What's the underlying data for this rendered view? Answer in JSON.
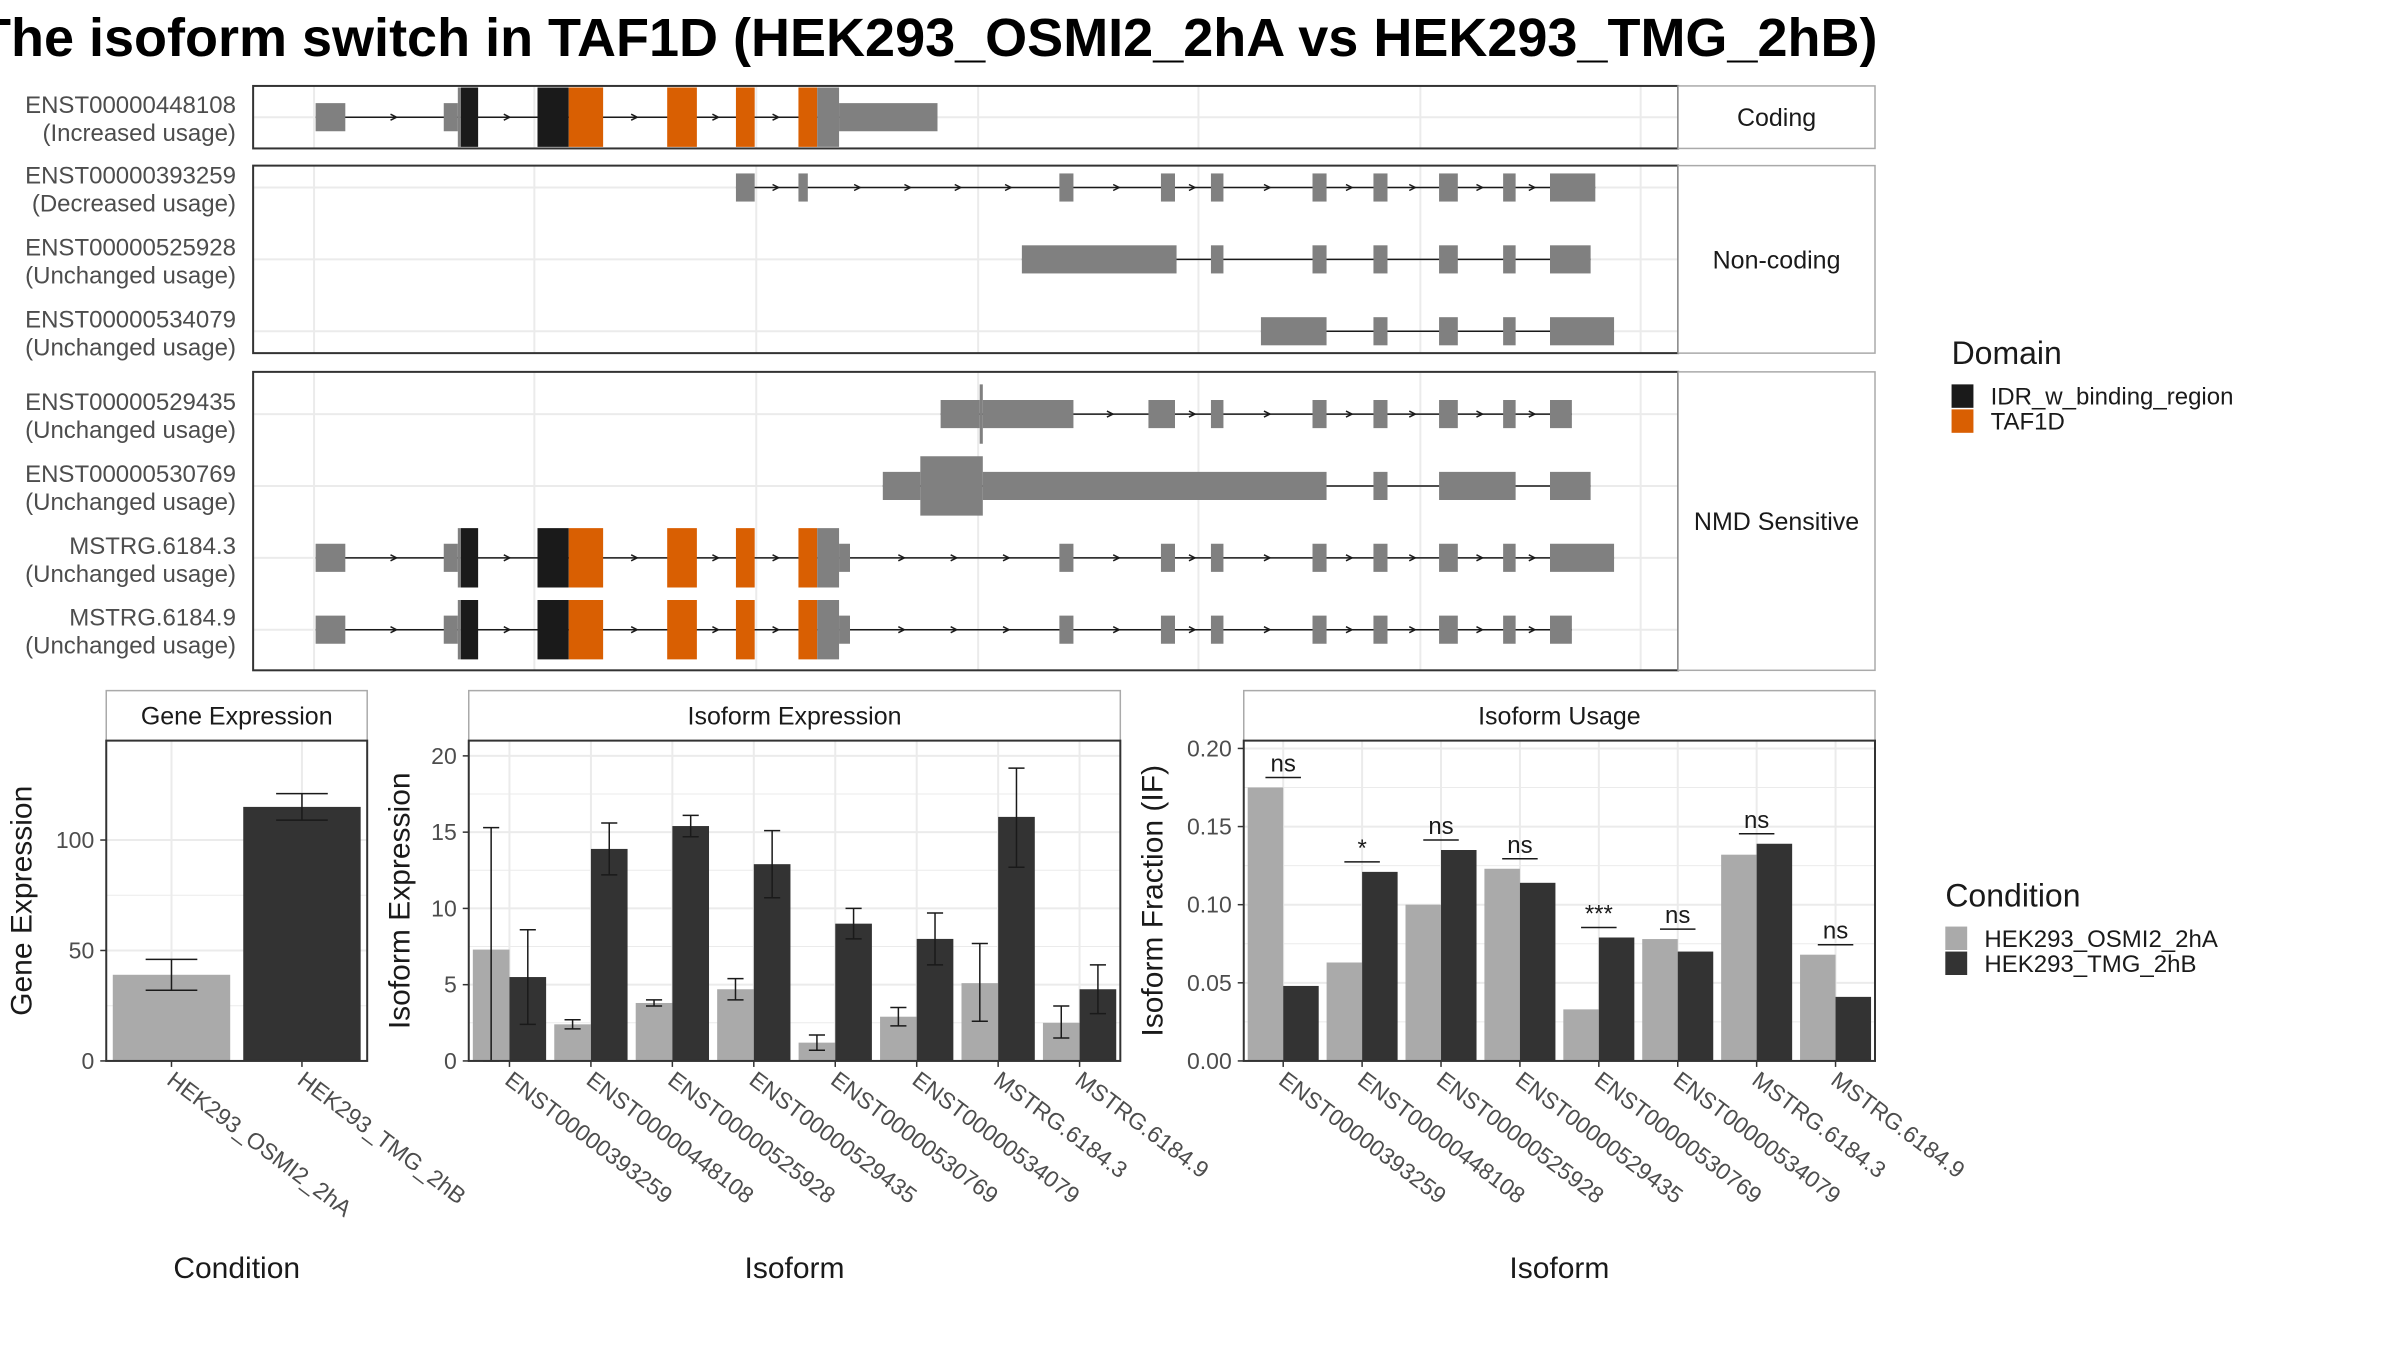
{
  "title": "The isoform switch in TAF1D (HEK293_OSMI2_2hA vs HEK293_TMG_2hB)",
  "colors": {
    "utr": "#808080",
    "IDR_w_binding_region": "#1a1a1a",
    "TAF1D": "#d95f02",
    "cond1": "#aaaaaa",
    "cond2": "#333333",
    "panel_border": "#333333",
    "strip_border": "#aaaaaa",
    "grid": "#ebebeb"
  },
  "structure": {
    "groups": [
      {
        "label": "Coding",
        "tracks": [
          {
            "id": "ENST00000448108",
            "usage": "(Increased usage)",
            "arrows": true,
            "exons": [
              {
                "s": 202,
                "e": 221,
                "t": "utr"
              },
              {
                "s": 284,
                "e": 293,
                "t": "utr"
              },
              {
                "s": 293,
                "e": 295,
                "t": "cds"
              },
              {
                "s": 295,
                "e": 306,
                "t": "IDR_w_binding_region"
              },
              {
                "s": 344,
                "e": 364,
                "t": "IDR_w_binding_region"
              },
              {
                "s": 364,
                "e": 386,
                "t": "TAF1D"
              },
              {
                "s": 427,
                "e": 446,
                "t": "TAF1D"
              },
              {
                "s": 471,
                "e": 483,
                "t": "TAF1D"
              },
              {
                "s": 511,
                "e": 523,
                "t": "TAF1D"
              },
              {
                "s": 523,
                "e": 537,
                "t": "cds"
              },
              {
                "s": 537,
                "e": 600,
                "t": "utr"
              }
            ]
          }
        ]
      },
      {
        "label": "Non-coding",
        "tracks": [
          {
            "id": "ENST00000393259",
            "usage": "(Decreased usage)",
            "arrows": true,
            "exons": [
              {
                "s": 471,
                "e": 483,
                "t": "utr"
              },
              {
                "s": 511,
                "e": 517,
                "t": "utr"
              },
              {
                "s": 678,
                "e": 687,
                "t": "utr"
              },
              {
                "s": 743,
                "e": 752,
                "t": "utr"
              },
              {
                "s": 775,
                "e": 783,
                "t": "utr"
              },
              {
                "s": 840,
                "e": 849,
                "t": "utr"
              },
              {
                "s": 879,
                "e": 888,
                "t": "utr"
              },
              {
                "s": 921,
                "e": 933,
                "t": "utr"
              },
              {
                "s": 962,
                "e": 970,
                "t": "utr"
              },
              {
                "s": 992,
                "e": 1021,
                "t": "utr"
              }
            ]
          },
          {
            "id": "ENST00000525928",
            "usage": "(Unchanged usage)",
            "arrows": false,
            "exons": [
              {
                "s": 654,
                "e": 753,
                "t": "utr"
              },
              {
                "s": 775,
                "e": 783,
                "t": "utr"
              },
              {
                "s": 840,
                "e": 849,
                "t": "utr"
              },
              {
                "s": 879,
                "e": 888,
                "t": "utr"
              },
              {
                "s": 921,
                "e": 933,
                "t": "utr"
              },
              {
                "s": 962,
                "e": 970,
                "t": "utr"
              },
              {
                "s": 992,
                "e": 1018,
                "t": "utr"
              }
            ]
          },
          {
            "id": "ENST00000534079",
            "usage": "(Unchanged usage)",
            "arrows": false,
            "exons": [
              {
                "s": 807,
                "e": 849,
                "t": "utr"
              },
              {
                "s": 879,
                "e": 888,
                "t": "utr"
              },
              {
                "s": 921,
                "e": 933,
                "t": "utr"
              },
              {
                "s": 962,
                "e": 970,
                "t": "utr"
              },
              {
                "s": 992,
                "e": 1033,
                "t": "utr"
              }
            ]
          }
        ]
      },
      {
        "label": "NMD Sensitive",
        "tracks": [
          {
            "id": "ENST00000529435",
            "usage": "(Unchanged usage)",
            "arrows": true,
            "exons": [
              {
                "s": 602,
                "e": 627,
                "t": "utr"
              },
              {
                "s": 627,
                "e": 629,
                "t": "cds"
              },
              {
                "s": 629,
                "e": 687,
                "t": "utr"
              },
              {
                "s": 735,
                "e": 752,
                "t": "utr"
              },
              {
                "s": 775,
                "e": 783,
                "t": "utr"
              },
              {
                "s": 840,
                "e": 849,
                "t": "utr"
              },
              {
                "s": 879,
                "e": 888,
                "t": "utr"
              },
              {
                "s": 921,
                "e": 933,
                "t": "utr"
              },
              {
                "s": 962,
                "e": 970,
                "t": "utr"
              },
              {
                "s": 992,
                "e": 1006,
                "t": "utr"
              }
            ]
          },
          {
            "id": "ENST00000530769",
            "usage": "(Unchanged usage)",
            "arrows": false,
            "exons": [
              {
                "s": 565,
                "e": 589,
                "t": "utr"
              },
              {
                "s": 589,
                "e": 629,
                "t": "cds"
              },
              {
                "s": 629,
                "e": 849,
                "t": "utr"
              },
              {
                "s": 879,
                "e": 888,
                "t": "utr"
              },
              {
                "s": 921,
                "e": 970,
                "t": "utr"
              },
              {
                "s": 992,
                "e": 1018,
                "t": "utr"
              }
            ]
          },
          {
            "id": "MSTRG.6184.3",
            "usage": "(Unchanged usage)",
            "arrows": true,
            "exons": [
              {
                "s": 202,
                "e": 221,
                "t": "utr"
              },
              {
                "s": 284,
                "e": 293,
                "t": "utr"
              },
              {
                "s": 293,
                "e": 295,
                "t": "cds"
              },
              {
                "s": 295,
                "e": 306,
                "t": "IDR_w_binding_region"
              },
              {
                "s": 344,
                "e": 364,
                "t": "IDR_w_binding_region"
              },
              {
                "s": 364,
                "e": 386,
                "t": "TAF1D"
              },
              {
                "s": 427,
                "e": 446,
                "t": "TAF1D"
              },
              {
                "s": 471,
                "e": 483,
                "t": "TAF1D"
              },
              {
                "s": 511,
                "e": 523,
                "t": "TAF1D"
              },
              {
                "s": 523,
                "e": 537,
                "t": "cds"
              },
              {
                "s": 537,
                "e": 544,
                "t": "utr"
              },
              {
                "s": 678,
                "e": 687,
                "t": "utr"
              },
              {
                "s": 743,
                "e": 752,
                "t": "utr"
              },
              {
                "s": 775,
                "e": 783,
                "t": "utr"
              },
              {
                "s": 840,
                "e": 849,
                "t": "utr"
              },
              {
                "s": 879,
                "e": 888,
                "t": "utr"
              },
              {
                "s": 921,
                "e": 933,
                "t": "utr"
              },
              {
                "s": 962,
                "e": 970,
                "t": "utr"
              },
              {
                "s": 992,
                "e": 1033,
                "t": "utr"
              }
            ]
          },
          {
            "id": "MSTRG.6184.9",
            "usage": "(Unchanged usage)",
            "arrows": true,
            "exons": [
              {
                "s": 202,
                "e": 221,
                "t": "utr"
              },
              {
                "s": 284,
                "e": 293,
                "t": "utr"
              },
              {
                "s": 293,
                "e": 295,
                "t": "cds"
              },
              {
                "s": 295,
                "e": 306,
                "t": "IDR_w_binding_region"
              },
              {
                "s": 344,
                "e": 364,
                "t": "IDR_w_binding_region"
              },
              {
                "s": 364,
                "e": 386,
                "t": "TAF1D"
              },
              {
                "s": 427,
                "e": 446,
                "t": "TAF1D"
              },
              {
                "s": 471,
                "e": 483,
                "t": "TAF1D"
              },
              {
                "s": 511,
                "e": 523,
                "t": "TAF1D"
              },
              {
                "s": 523,
                "e": 537,
                "t": "cds"
              },
              {
                "s": 537,
                "e": 544,
                "t": "utr"
              },
              {
                "s": 678,
                "e": 687,
                "t": "utr"
              },
              {
                "s": 743,
                "e": 752,
                "t": "utr"
              },
              {
                "s": 775,
                "e": 783,
                "t": "utr"
              },
              {
                "s": 840,
                "e": 849,
                "t": "utr"
              },
              {
                "s": 879,
                "e": 888,
                "t": "utr"
              },
              {
                "s": 921,
                "e": 933,
                "t": "utr"
              },
              {
                "s": 962,
                "e": 970,
                "t": "utr"
              },
              {
                "s": 992,
                "e": 1006,
                "t": "utr"
              }
            ]
          }
        ]
      }
    ]
  },
  "domain_legend": {
    "title": "Domain",
    "items": [
      {
        "label": "IDR_w_binding_region",
        "color": "#1a1a1a"
      },
      {
        "label": "TAF1D",
        "color": "#d95f02"
      }
    ]
  },
  "condition_legend": {
    "title": "Condition",
    "items": [
      {
        "label": "HEK293_OSMI2_2hA",
        "color": "#aaaaaa"
      },
      {
        "label": "HEK293_TMG_2hB",
        "color": "#333333"
      }
    ]
  },
  "chart_data": [
    {
      "type": "bar",
      "strip": "Gene Expression",
      "xlabel": "Condition",
      "ylabel": "Gene Expression",
      "ylim": [
        0,
        145
      ],
      "yticks": [
        0,
        50,
        100
      ],
      "categories": [
        "HEK293_OSMI2_2hA",
        "HEK293_TMG_2hB"
      ],
      "values": [
        39,
        115
      ],
      "err_low": [
        32,
        109
      ],
      "err_high": [
        46,
        121
      ]
    },
    {
      "type": "bar",
      "strip": "Isoform Expression",
      "xlabel": "Isoform",
      "ylabel": "Isoform Expression",
      "ylim": [
        0,
        21
      ],
      "yticks": [
        0,
        5,
        10,
        15,
        20
      ],
      "categories": [
        "ENST00000393259",
        "ENST00000448108",
        "ENST00000525928",
        "ENST00000529435",
        "ENST00000530769",
        "ENST00000534079",
        "MSTRG.6184.3",
        "MSTRG.6184.9"
      ],
      "series": [
        {
          "name": "HEK293_OSMI2_2hA",
          "values": [
            7.3,
            2.4,
            3.8,
            4.7,
            1.2,
            2.9,
            5.1,
            2.5
          ],
          "err_low": [
            0,
            2.1,
            3.6,
            4.0,
            0.7,
            2.3,
            2.6,
            1.5
          ],
          "err_high": [
            15.3,
            2.7,
            4.0,
            5.4,
            1.7,
            3.5,
            7.7,
            3.6
          ]
        },
        {
          "name": "HEK293_TMG_2hB",
          "values": [
            5.5,
            13.9,
            15.4,
            12.9,
            9.0,
            8.0,
            16.0,
            4.7
          ],
          "err_low": [
            2.4,
            12.2,
            14.7,
            10.7,
            8.0,
            6.3,
            12.7,
            3.1
          ],
          "err_high": [
            8.6,
            15.6,
            16.1,
            15.1,
            10.0,
            9.7,
            19.2,
            6.3
          ]
        }
      ]
    },
    {
      "type": "bar",
      "strip": "Isoform Usage",
      "xlabel": "Isoform",
      "ylabel": "Isoform Fraction (IF)",
      "ylim": [
        0,
        0.205
      ],
      "yticks": [
        "0.00",
        "0.05",
        "0.10",
        "0.15",
        "0.20"
      ],
      "categories": [
        "ENST00000393259",
        "ENST00000448108",
        "ENST00000525928",
        "ENST00000529435",
        "ENST00000530769",
        "ENST00000534079",
        "MSTRG.6184.3",
        "MSTRG.6184.9"
      ],
      "series": [
        {
          "name": "HEK293_OSMI2_2hA",
          "values": [
            0.175,
            0.063,
            0.1,
            0.123,
            0.033,
            0.078,
            0.132,
            0.068
          ]
        },
        {
          "name": "HEK293_TMG_2hB",
          "values": [
            0.048,
            0.121,
            0.135,
            0.114,
            0.079,
            0.07,
            0.139,
            0.041
          ]
        }
      ],
      "significance": [
        "ns",
        "*",
        "ns",
        "ns",
        "***",
        "ns",
        "ns",
        "ns"
      ]
    }
  ]
}
